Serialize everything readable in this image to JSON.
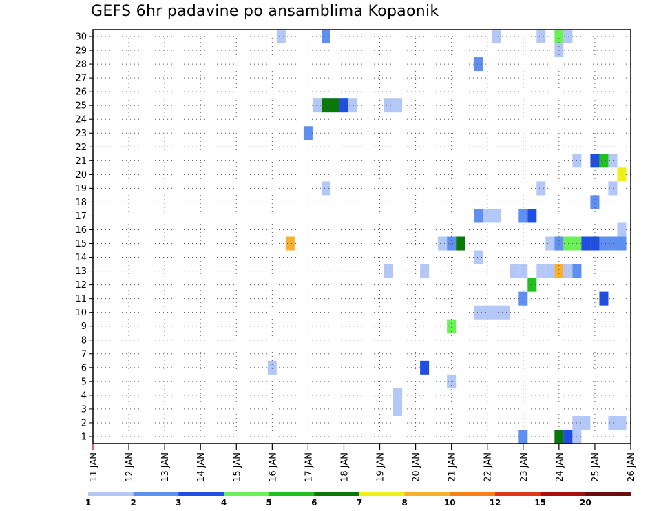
{
  "chart_data": {
    "type": "heatmap",
    "title": "GEFS 6hr padavine po ansamblima Kopaonik",
    "xlabel": "",
    "ylabel": "",
    "x_unit": "days since 11 JAN",
    "xlim": [
      0,
      15
    ],
    "ylim": [
      0.5,
      30.5
    ],
    "x_tick_labels": [
      "11 JAN",
      "12 JAN",
      "13 JAN",
      "14 JAN",
      "15 JAN",
      "16 JAN",
      "17 JAN",
      "18 JAN",
      "19 JAN",
      "20 JAN",
      "21 JAN",
      "22 JAN",
      "23 JAN",
      "24 JAN",
      "25 JAN",
      "26 JAN"
    ],
    "y_tick_labels": [
      "1",
      "2",
      "3",
      "4",
      "5",
      "6",
      "7",
      "8",
      "9",
      "10",
      "11",
      "12",
      "13",
      "14",
      "15",
      "16",
      "17",
      "18",
      "19",
      "20",
      "21",
      "22",
      "23",
      "24",
      "25",
      "26",
      "27",
      "28",
      "29",
      "30"
    ],
    "legend": {
      "labels": [
        "1",
        "2",
        "3",
        "4",
        "5",
        "6",
        "7",
        "8",
        "10",
        "12",
        "15",
        "20"
      ],
      "colors": [
        "#b4c8f8",
        "#5f8ff0",
        "#1f4ee0",
        "#6cf05a",
        "#20c020",
        "#087808",
        "#f0f018",
        "#f8b030",
        "#f88018",
        "#e03818",
        "#a81010",
        "#6c0c0c"
      ]
    },
    "grid": true,
    "cells": [
      {
        "member": 30,
        "x": 5.25,
        "bin": 0
      },
      {
        "member": 30,
        "x": 6.5,
        "bin": 1
      },
      {
        "member": 30,
        "x": 11.25,
        "bin": 0
      },
      {
        "member": 30,
        "x": 12.5,
        "bin": 0
      },
      {
        "member": 30,
        "x": 13.0,
        "bin": 3
      },
      {
        "member": 30,
        "x": 13.25,
        "bin": 0
      },
      {
        "member": 29,
        "x": 13.0,
        "bin": 0
      },
      {
        "member": 28,
        "x": 10.75,
        "bin": 1
      },
      {
        "member": 25,
        "x": 6.25,
        "bin": 0
      },
      {
        "member": 25,
        "x": 6.5,
        "bin": 5
      },
      {
        "member": 25,
        "x": 6.75,
        "bin": 5
      },
      {
        "member": 25,
        "x": 7.0,
        "bin": 2
      },
      {
        "member": 25,
        "x": 7.25,
        "bin": 0
      },
      {
        "member": 25,
        "x": 8.25,
        "bin": 0
      },
      {
        "member": 25,
        "x": 8.5,
        "bin": 0
      },
      {
        "member": 23,
        "x": 6.0,
        "bin": 1
      },
      {
        "member": 21,
        "x": 13.5,
        "bin": 0
      },
      {
        "member": 21,
        "x": 14.0,
        "bin": 2
      },
      {
        "member": 21,
        "x": 14.25,
        "bin": 4
      },
      {
        "member": 21,
        "x": 14.5,
        "bin": 0
      },
      {
        "member": 20,
        "x": 14.75,
        "bin": 6
      },
      {
        "member": 19,
        "x": 6.5,
        "bin": 0
      },
      {
        "member": 19,
        "x": 12.5,
        "bin": 0
      },
      {
        "member": 19,
        "x": 14.5,
        "bin": 0
      },
      {
        "member": 18,
        "x": 14.0,
        "bin": 1
      },
      {
        "member": 17,
        "x": 10.75,
        "bin": 1
      },
      {
        "member": 17,
        "x": 11.0,
        "bin": 0
      },
      {
        "member": 17,
        "x": 11.25,
        "bin": 0
      },
      {
        "member": 17,
        "x": 12.0,
        "bin": 1
      },
      {
        "member": 17,
        "x": 12.25,
        "bin": 2
      },
      {
        "member": 16,
        "x": 14.75,
        "bin": 0
      },
      {
        "member": 15,
        "x": 5.5,
        "bin": 7
      },
      {
        "member": 15,
        "x": 9.75,
        "bin": 0
      },
      {
        "member": 15,
        "x": 10.0,
        "bin": 1
      },
      {
        "member": 15,
        "x": 10.25,
        "bin": 5
      },
      {
        "member": 15,
        "x": 12.75,
        "bin": 0
      },
      {
        "member": 15,
        "x": 13.0,
        "bin": 1
      },
      {
        "member": 15,
        "x": 13.25,
        "bin": 3
      },
      {
        "member": 15,
        "x": 13.5,
        "bin": 3
      },
      {
        "member": 15,
        "x": 13.75,
        "bin": 2
      },
      {
        "member": 15,
        "x": 14.0,
        "bin": 2
      },
      {
        "member": 15,
        "x": 14.25,
        "bin": 1
      },
      {
        "member": 15,
        "x": 14.5,
        "bin": 1
      },
      {
        "member": 15,
        "x": 14.75,
        "bin": 1
      },
      {
        "member": 14,
        "x": 10.75,
        "bin": 0
      },
      {
        "member": 13,
        "x": 8.25,
        "bin": 0
      },
      {
        "member": 13,
        "x": 9.25,
        "bin": 0
      },
      {
        "member": 13,
        "x": 11.75,
        "bin": 0
      },
      {
        "member": 13,
        "x": 12.0,
        "bin": 0
      },
      {
        "member": 13,
        "x": 12.5,
        "bin": 0
      },
      {
        "member": 13,
        "x": 12.75,
        "bin": 0
      },
      {
        "member": 13,
        "x": 13.0,
        "bin": 7
      },
      {
        "member": 13,
        "x": 13.25,
        "bin": 0
      },
      {
        "member": 13,
        "x": 13.5,
        "bin": 1
      },
      {
        "member": 12,
        "x": 12.25,
        "bin": 4
      },
      {
        "member": 11,
        "x": 12.0,
        "bin": 1
      },
      {
        "member": 11,
        "x": 14.25,
        "bin": 2
      },
      {
        "member": 10,
        "x": 10.75,
        "bin": 0
      },
      {
        "member": 10,
        "x": 11.0,
        "bin": 0
      },
      {
        "member": 10,
        "x": 11.25,
        "bin": 0
      },
      {
        "member": 10,
        "x": 11.5,
        "bin": 0
      },
      {
        "member": 9,
        "x": 10.0,
        "bin": 3
      },
      {
        "member": 6,
        "x": 5.0,
        "bin": 0
      },
      {
        "member": 6,
        "x": 9.25,
        "bin": 2
      },
      {
        "member": 5,
        "x": 10.0,
        "bin": 0
      },
      {
        "member": 4,
        "x": 8.5,
        "bin": 0
      },
      {
        "member": 3,
        "x": 8.5,
        "bin": 0
      },
      {
        "member": 2,
        "x": 13.5,
        "bin": 0
      },
      {
        "member": 2,
        "x": 13.75,
        "bin": 0
      },
      {
        "member": 2,
        "x": 14.5,
        "bin": 0
      },
      {
        "member": 2,
        "x": 14.75,
        "bin": 0
      },
      {
        "member": 1,
        "x": 12.0,
        "bin": 1
      },
      {
        "member": 1,
        "x": 13.0,
        "bin": 5
      },
      {
        "member": 1,
        "x": 13.25,
        "bin": 2
      },
      {
        "member": 1,
        "x": 13.5,
        "bin": 0
      }
    ]
  }
}
